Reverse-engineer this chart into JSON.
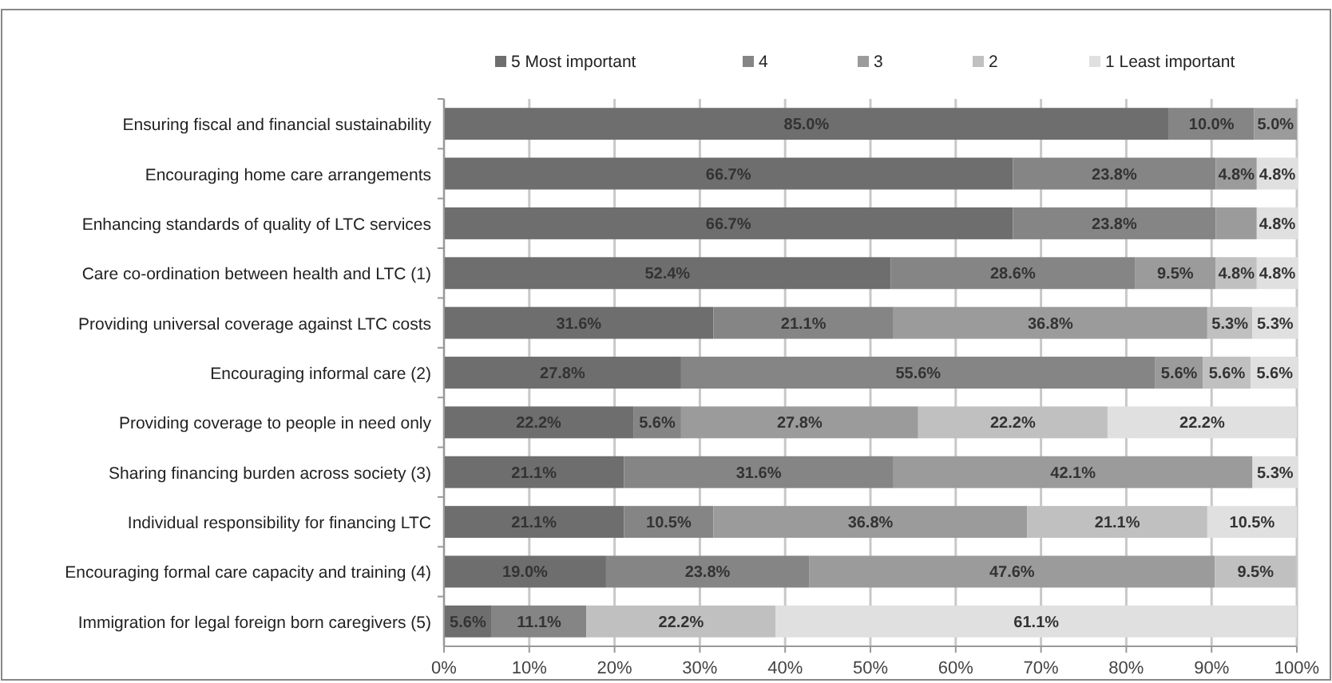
{
  "chart_data": {
    "type": "bar",
    "orientation": "horizontal",
    "stacked": true,
    "legend": "top",
    "grid": "x",
    "categories": [
      "Ensuring fiscal and financial sustainability",
      "Encouraging home care arrangements",
      "Enhancing standards of quality of LTC services",
      "Care co-ordination between health and LTC (1)",
      "Providing universal coverage against LTC costs",
      "Encouraging informal care (2)",
      "Providing coverage to people in need only",
      "Sharing financing burden across society (3)",
      "Individual responsibility for financing LTC",
      "Encouraging formal care capacity and training (4)",
      "Immigration for legal foreign born caregivers (5)"
    ],
    "series": [
      {
        "name": "5 Most important",
        "color": "#6e6e6e",
        "values": [
          85.0,
          66.7,
          66.7,
          52.4,
          31.6,
          27.8,
          22.2,
          21.1,
          21.1,
          19.0,
          5.6
        ],
        "value_labels": [
          "85.0%",
          "66.7%",
          "66.7%",
          "52.4%",
          "31.6%",
          "27.8%",
          "22.2%",
          "21.1%",
          "21.1%",
          "19.0%",
          "5.6%"
        ]
      },
      {
        "name": "4",
        "color": "#858585",
        "values": [
          10.0,
          23.8,
          23.8,
          28.6,
          21.1,
          55.6,
          5.6,
          31.6,
          10.5,
          23.8,
          11.1
        ],
        "value_labels": [
          "10.0%",
          "23.8%",
          "23.8%",
          "28.6%",
          "21.1%",
          "55.6%",
          "5.6%",
          "31.6%",
          "10.5%",
          "23.8%",
          "11.1%"
        ]
      },
      {
        "name": "3",
        "color": "#9b9b9b",
        "values": [
          5.0,
          4.8,
          4.8,
          9.5,
          36.8,
          5.6,
          27.8,
          42.1,
          36.8,
          47.6,
          null
        ],
        "value_labels": [
          "5.0%",
          "4.8%",
          null,
          "9.5%",
          "36.8%",
          "5.6%",
          "27.8%",
          "42.1%",
          "36.8%",
          "47.6%",
          null
        ]
      },
      {
        "name": "2",
        "color": "#c0c0c0",
        "values": [
          null,
          null,
          null,
          4.8,
          5.3,
          5.6,
          22.2,
          null,
          21.1,
          9.5,
          22.2
        ],
        "value_labels": [
          null,
          null,
          null,
          "4.8%",
          "5.3%",
          "5.6%",
          "22.2%",
          null,
          "21.1%",
          "9.5%",
          "22.2%"
        ]
      },
      {
        "name": "1 Least important",
        "color": "#e0e0e0",
        "values": [
          null,
          4.8,
          4.8,
          4.8,
          5.3,
          5.6,
          22.2,
          5.3,
          10.5,
          null,
          61.1
        ],
        "value_labels": [
          null,
          "4.8%",
          "4.8%",
          "4.8%",
          "5.3%",
          "5.6%",
          "22.2%",
          "5.3%",
          "10.5%",
          null,
          "61.1%"
        ]
      }
    ],
    "xlim": [
      0,
      100
    ],
    "xticks": [
      {
        "value": 0,
        "label": "0%"
      },
      {
        "value": 10,
        "label": "10%"
      },
      {
        "value": 20,
        "label": "20%"
      },
      {
        "value": 30,
        "label": "30%"
      },
      {
        "value": 40,
        "label": "40%"
      },
      {
        "value": 50,
        "label": "50%"
      },
      {
        "value": 60,
        "label": "60%"
      },
      {
        "value": 70,
        "label": "70%"
      },
      {
        "value": 80,
        "label": "80%"
      },
      {
        "value": 90,
        "label": "90%"
      },
      {
        "value": 100,
        "label": "100%"
      }
    ]
  }
}
